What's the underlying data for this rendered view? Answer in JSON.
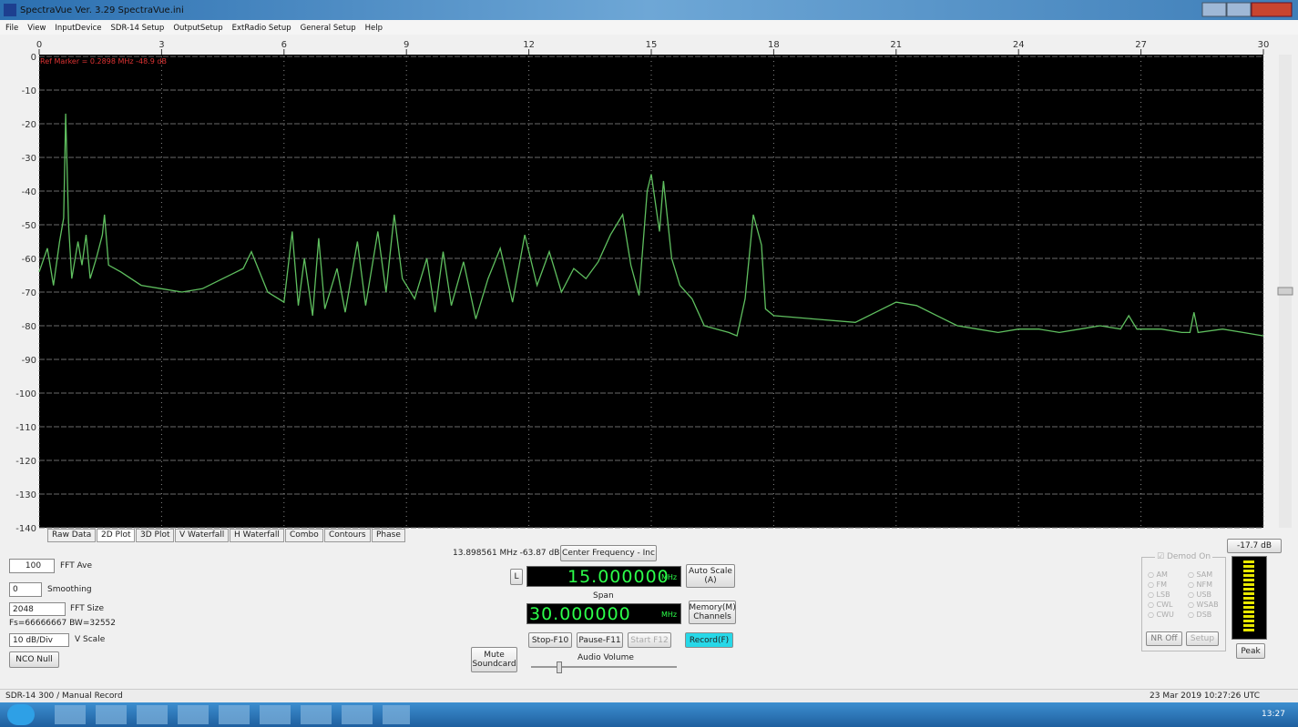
{
  "window": {
    "title": "SpectraVue Ver. 3.29 SpectraVue.ini"
  },
  "menu": [
    "File",
    "View",
    "InputDevice",
    "SDR-14 Setup",
    "OutputSetup",
    "ExtRadio Setup",
    "General Setup",
    "Help"
  ],
  "spectrum": {
    "type": "line",
    "marker_label": "Ref Marker = 0.2898 MHz -48.9 dB",
    "color": "#5fbf5f",
    "grid": true,
    "xlim": [
      0,
      30
    ],
    "ylim": [
      -140,
      0
    ],
    "xticks": [
      0,
      3,
      6,
      9,
      12,
      15,
      18,
      21,
      24,
      27,
      30
    ],
    "yticks": [
      0,
      -10,
      -20,
      -30,
      -40,
      -50,
      -60,
      -70,
      -80,
      -90,
      -100,
      -110,
      -120,
      -130,
      -140
    ],
    "x": [
      0,
      0.2,
      0.35,
      0.5,
      0.6,
      0.65,
      0.72,
      0.8,
      0.95,
      1.05,
      1.15,
      1.25,
      1.4,
      1.55,
      1.6,
      1.7,
      2.0,
      2.5,
      3.0,
      3.5,
      4.0,
      4.5,
      5.0,
      5.2,
      5.4,
      5.6,
      6.0,
      6.2,
      6.35,
      6.5,
      6.7,
      6.85,
      7.0,
      7.3,
      7.5,
      7.8,
      8.0,
      8.3,
      8.5,
      8.7,
      8.9,
      9.2,
      9.5,
      9.7,
      9.9,
      10.1,
      10.4,
      10.7,
      11.0,
      11.3,
      11.6,
      11.9,
      12.2,
      12.5,
      12.8,
      13.1,
      13.4,
      13.7,
      14.0,
      14.3,
      14.5,
      14.7,
      14.9,
      15.0,
      15.2,
      15.3,
      15.5,
      15.7,
      16.0,
      16.3,
      16.6,
      16.9,
      17.1,
      17.3,
      17.5,
      17.7,
      17.8,
      18.0,
      19,
      20,
      20.5,
      21,
      21.5,
      22,
      22.5,
      23,
      23.5,
      24,
      24.5,
      25,
      25.5,
      26,
      26.5,
      26.7,
      26.9,
      27.5,
      28,
      28.2,
      28.3,
      28.4,
      29,
      29.5,
      30
    ],
    "values": [
      -64,
      -57,
      -68,
      -55,
      -48,
      -17,
      -50,
      -66,
      -55,
      -62,
      -53,
      -66,
      -60,
      -53,
      -47,
      -62,
      -64,
      -68,
      -69,
      -70,
      -69,
      -66,
      -63,
      -58,
      -64,
      -70,
      -73,
      -52,
      -74,
      -60,
      -77,
      -54,
      -75,
      -63,
      -76,
      -55,
      -74,
      -52,
      -70,
      -47,
      -66,
      -72,
      -60,
      -76,
      -58,
      -74,
      -61,
      -78,
      -66,
      -57,
      -73,
      -53,
      -68,
      -58,
      -70,
      -63,
      -66,
      -61,
      -53,
      -47,
      -62,
      -71,
      -40,
      -35,
      -52,
      -37,
      -60,
      -68,
      -72,
      -80,
      -81,
      -82,
      -83,
      -72,
      -47,
      -56,
      -75,
      -77,
      -78,
      -79,
      -76,
      -73,
      -74,
      -77,
      -80,
      -81,
      -82,
      -81,
      -81,
      -82,
      -81,
      -80,
      -81,
      -77,
      -81,
      -81,
      -82,
      -82,
      -76,
      -82,
      -81,
      -82,
      -83
    ]
  },
  "tabs": [
    "Raw Data",
    "2D Plot",
    "3D Plot",
    "V Waterfall",
    "H Waterfall",
    "Combo",
    "Contours",
    "Phase"
  ],
  "left": {
    "fft_ave_value": "100",
    "fft_ave_label": "FFT Ave",
    "smoothing_value": "0",
    "smoothing_label": "Smoothing",
    "fft_size_value": "2048",
    "fft_size_label": "FFT Size",
    "fs_info": "Fs=66666667 BW=32552",
    "vscale_value": "10 dB/Div",
    "vscale_label": "V Scale",
    "nco_null": "NCO Null"
  },
  "center": {
    "readout": "13.898561 MHz -63.87 dB",
    "center_freq_button": "Center Frequency - Inc",
    "l_button": "L",
    "center_freq": "15.000000",
    "center_unit": "MHz",
    "span_label": "Span",
    "span": "30.000000",
    "span_unit": "MHz",
    "auto_scale": "Auto Scale (A)",
    "memory": "Memory(M) Channels",
    "stop": "Stop-F10",
    "pause": "Pause-F11",
    "start": "Start F12",
    "record": "Record(F)",
    "mute": "Mute Soundcard",
    "audio_volume": "Audio Volume"
  },
  "right": {
    "level": "-17.7 dB",
    "demod_on": "Demod On",
    "modes": [
      "AM",
      "SAM",
      "FM",
      "NFM",
      "LSB",
      "USB",
      "CWL",
      "WSAB",
      "CWU",
      "DSB"
    ],
    "nr_off": "NR Off",
    "setup": "Setup",
    "peak": "Peak"
  },
  "status": {
    "left": "SDR-14 300 / Manual Record",
    "right": "23 Mar 2019 10:27:26 UTC"
  },
  "taskbar": {
    "time": "13:27"
  }
}
